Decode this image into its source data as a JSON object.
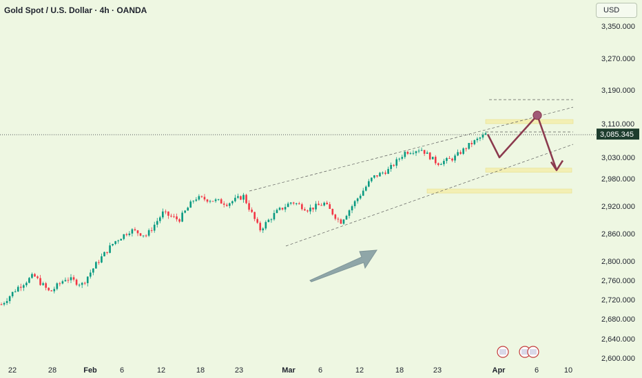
{
  "header": {
    "title": "Gold Spot / U.S. Dollar · 4h · OANDA",
    "currency": "USD"
  },
  "colors": {
    "background": "#eef7e2",
    "candle_up": "#089981",
    "candle_down": "#f23645",
    "price_tag": "#1e3d2e",
    "zone": "#f3efb4",
    "path": "#8b3a4e",
    "arrow": "#8fa6a8"
  },
  "chart_data": {
    "type": "candlestick",
    "y_ticks": [
      "3,350.000",
      "3,270.000",
      "3,190.000",
      "3,110.000",
      "3,030.000",
      "2,980.000",
      "2,920.000",
      "2,860.000",
      "2,800.000",
      "2,760.000",
      "2,720.000",
      "2,680.000",
      "2,640.000",
      "2,600.000"
    ],
    "x_ticks": [
      {
        "label": "22",
        "bold": false
      },
      {
        "label": "28",
        "bold": false
      },
      {
        "label": "Feb",
        "bold": true
      },
      {
        "label": "6",
        "bold": false
      },
      {
        "label": "12",
        "bold": false
      },
      {
        "label": "18",
        "bold": false
      },
      {
        "label": "23",
        "bold": false
      },
      {
        "label": "Mar",
        "bold": true
      },
      {
        "label": "6",
        "bold": false
      },
      {
        "label": "12",
        "bold": false
      },
      {
        "label": "18",
        "bold": false
      },
      {
        "label": "23",
        "bold": false
      },
      {
        "label": "Apr",
        "bold": true
      },
      {
        "label": "6",
        "bold": false
      },
      {
        "label": "10",
        "bold": false
      }
    ],
    "current_price": "3,085.345",
    "price_path": [
      2710,
      2745,
      2770,
      2735,
      2765,
      2752,
      2800,
      2842,
      2868,
      2856,
      2905,
      2890,
      2938,
      2934,
      2926,
      2942,
      2868,
      2906,
      2930,
      2913,
      2926,
      2885,
      2934,
      2983,
      3001,
      3042,
      3050,
      3016,
      3028,
      3060,
      3085
    ],
    "projection": [
      3085,
      3030,
      3130,
      3000
    ],
    "zones": [
      3115,
      3000,
      2953
    ],
    "channel_lines": 4,
    "flag_icons": 3
  }
}
